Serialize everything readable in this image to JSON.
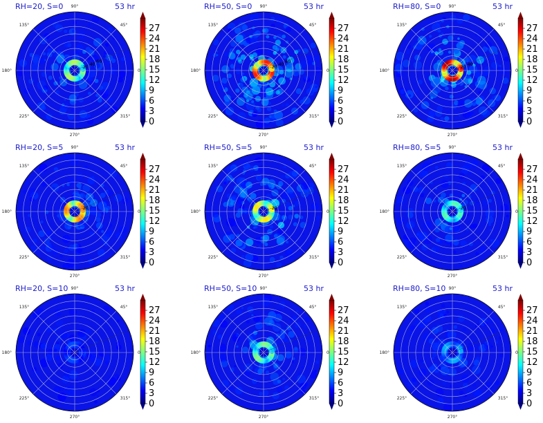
{
  "colors": {
    "colormap": [
      "#00007f",
      "#0000ff",
      "#007fff",
      "#00ffff",
      "#7fff7f",
      "#ffff00",
      "#ff7f00",
      "#ff0000",
      "#7f0000"
    ],
    "title_color": "#1a1acc",
    "grid_color": "#d0d0d0"
  },
  "chart_data": [
    {
      "type": "polar-heatmap",
      "title": "RH=20, S=0",
      "time_label": "53 hr",
      "intensity": 0.35,
      "seed": 11,
      "annular_peak": 0.55,
      "angle_labels": [
        "90°",
        "45°",
        "0°",
        "315°",
        "270°",
        "225°",
        "180°",
        "135°"
      ],
      "ring_labels": [
        "20",
        "40",
        "60"
      ],
      "colorbar_ticks": [
        "0",
        "3",
        "6",
        "9",
        "12",
        "15",
        "18",
        "21",
        "24",
        "27"
      ],
      "vmin": 0,
      "vmax": 30
    },
    {
      "type": "polar-heatmap",
      "title": "RH=50, S=0",
      "time_label": "53 hr",
      "intensity": 0.65,
      "seed": 23,
      "annular_peak": 0.85,
      "angle_labels": [
        "90°",
        "45°",
        "0°",
        "315°",
        "270°",
        "225°",
        "180°",
        "135°"
      ],
      "ring_labels": [
        "20",
        "40",
        "60"
      ],
      "colorbar_ticks": [
        "0",
        "3",
        "6",
        "9",
        "12",
        "15",
        "18",
        "21",
        "24",
        "27"
      ],
      "vmin": 0,
      "vmax": 30
    },
    {
      "type": "polar-heatmap",
      "title": "RH=80, S=0",
      "time_label": "53 hr",
      "intensity": 0.55,
      "seed": 37,
      "annular_peak": 0.95,
      "angle_labels": [
        "90°",
        "45°",
        "0°",
        "315°",
        "270°",
        "225°",
        "180°",
        "135°"
      ],
      "ring_labels": [
        "20",
        "40"
      ],
      "colorbar_ticks": [
        "0",
        "3",
        "6",
        "9",
        "12",
        "15",
        "18",
        "21",
        "24",
        "27"
      ],
      "vmin": 0,
      "vmax": 30
    },
    {
      "type": "polar-heatmap",
      "title": "RH=20, S=5",
      "time_label": "53 hr",
      "intensity": 0.3,
      "seed": 41,
      "annular_peak": 0.75,
      "angle_labels": [
        "90°",
        "45°",
        "0°",
        "315°",
        "270°",
        "225°",
        "180°",
        "135°"
      ],
      "ring_labels": [
        "20"
      ],
      "colorbar_ticks": [
        "0",
        "3",
        "6",
        "9",
        "12",
        "15",
        "18",
        "21",
        "24",
        "27"
      ],
      "vmin": 0,
      "vmax": 30
    },
    {
      "type": "polar-heatmap",
      "title": "RH=50, S=5",
      "time_label": "53 hr",
      "intensity": 0.5,
      "seed": 53,
      "annular_peak": 0.65,
      "angle_labels": [
        "90°",
        "45°",
        "0°",
        "315°",
        "270°",
        "225°",
        "180°",
        "135°"
      ],
      "ring_labels": [
        "20"
      ],
      "colorbar_ticks": [
        "0",
        "3",
        "6",
        "9",
        "12",
        "15",
        "18",
        "21",
        "24",
        "27"
      ],
      "vmin": 0,
      "vmax": 30
    },
    {
      "type": "polar-heatmap",
      "title": "RH=80, S=5",
      "time_label": "53 hr",
      "intensity": 0.3,
      "seed": 67,
      "annular_peak": 0.45,
      "angle_labels": [
        "90°",
        "45°",
        "0°",
        "315°",
        "270°",
        "225°",
        "180°",
        "135°"
      ],
      "ring_labels": [
        "20"
      ],
      "colorbar_ticks": [
        "0",
        "3",
        "6",
        "9",
        "12",
        "15",
        "18",
        "21",
        "24",
        "27"
      ],
      "vmin": 0,
      "vmax": 30
    },
    {
      "type": "polar-heatmap",
      "title": "RH=20, S=10",
      "time_label": "53 hr",
      "intensity": 0.12,
      "seed": 71,
      "annular_peak": 0.2,
      "angle_labels": [
        "90°",
        "45°",
        "0°",
        "315°",
        "270°",
        "225°",
        "180°",
        "135°"
      ],
      "ring_labels": [],
      "colorbar_ticks": [
        "0",
        "3",
        "6",
        "9",
        "12",
        "15",
        "18",
        "21",
        "24",
        "27"
      ],
      "vmin": 0,
      "vmax": 30
    },
    {
      "type": "polar-heatmap",
      "title": "RH=50, S=10",
      "time_label": "53 hr",
      "intensity": 0.35,
      "seed": 83,
      "annular_peak": 0.5,
      "angle_labels": [
        "90°",
        "45°",
        "0°",
        "315°",
        "270°",
        "225°",
        "180°",
        "135°"
      ],
      "ring_labels": [],
      "colorbar_ticks": [
        "0",
        "3",
        "6",
        "9",
        "12",
        "15",
        "18",
        "21",
        "24",
        "27"
      ],
      "vmin": 0,
      "vmax": 30
    },
    {
      "type": "polar-heatmap",
      "title": "RH=80, S=10",
      "time_label": "53 hr",
      "intensity": 0.2,
      "seed": 97,
      "annular_peak": 0.3,
      "angle_labels": [
        "90°",
        "45°",
        "0°",
        "315°",
        "270°",
        "225°",
        "180°",
        "135°"
      ],
      "ring_labels": [],
      "colorbar_ticks": [
        "0",
        "3",
        "6",
        "9",
        "12",
        "15",
        "18",
        "21",
        "24",
        "27"
      ],
      "vmin": 0,
      "vmax": 30
    }
  ]
}
